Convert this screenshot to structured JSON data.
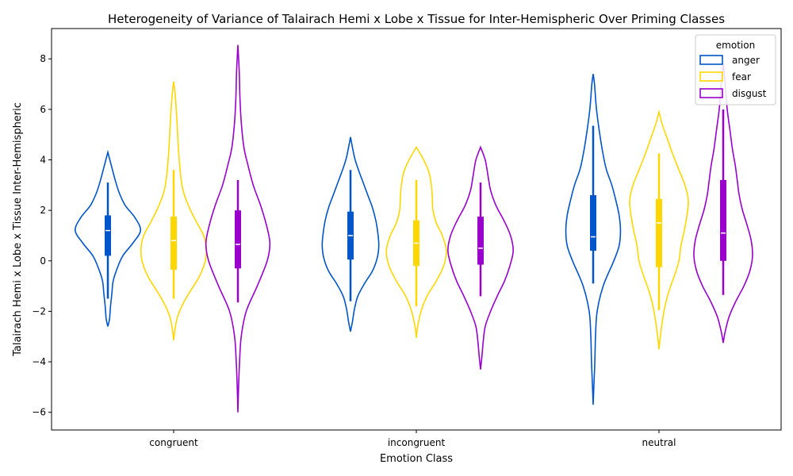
{
  "chart_data": {
    "type": "violin",
    "title": "Heterogeneity of Variance of Talairach Hemi x Lobe x Tissue for Inter-Hemispheric Over Priming Classes",
    "xlabel": "Emotion Class",
    "ylabel": "Talairach Hemi x Lobe x Tissue Inter-Hemispheric",
    "categories": [
      "congruent",
      "incongruent",
      "neutral"
    ],
    "ylim": [
      -6.7,
      9.2
    ],
    "yticks": [
      -6,
      -4,
      -2,
      0,
      2,
      4,
      6,
      8
    ],
    "legend": {
      "title": "emotion",
      "position": "top-right"
    },
    "series": [
      {
        "name": "anger",
        "color": "#0055c8",
        "stats": [
          {
            "min": -2.6,
            "max": 4.3,
            "whisker_low": -1.5,
            "whisker_high": 3.1,
            "q1": 0.2,
            "median": 1.2,
            "q3": 1.8,
            "density": [
              [
                -2.6,
                0.0
              ],
              [
                -2.3,
                0.05
              ],
              [
                -1.8,
                0.08
              ],
              [
                -1.3,
                0.12
              ],
              [
                -0.8,
                0.16
              ],
              [
                -0.3,
                0.28
              ],
              [
                0.2,
                0.45
              ],
              [
                0.7,
                0.75
              ],
              [
                1.2,
                0.98
              ],
              [
                1.7,
                0.82
              ],
              [
                2.2,
                0.52
              ],
              [
                2.7,
                0.34
              ],
              [
                3.2,
                0.22
              ],
              [
                3.7,
                0.12
              ],
              [
                4.3,
                0.0
              ]
            ]
          },
          {
            "min": -2.8,
            "max": 4.9,
            "whisker_low": -1.6,
            "whisker_high": 3.6,
            "q1": 0.05,
            "median": 1.0,
            "q3": 1.95,
            "density": [
              [
                -2.8,
                0.0
              ],
              [
                -2.4,
                0.06
              ],
              [
                -1.9,
                0.12
              ],
              [
                -1.4,
                0.22
              ],
              [
                -0.9,
                0.42
              ],
              [
                -0.4,
                0.66
              ],
              [
                0.1,
                0.8
              ],
              [
                0.6,
                0.85
              ],
              [
                1.1,
                0.82
              ],
              [
                1.6,
                0.76
              ],
              [
                2.1,
                0.66
              ],
              [
                2.6,
                0.52
              ],
              [
                3.1,
                0.38
              ],
              [
                3.6,
                0.24
              ],
              [
                4.1,
                0.12
              ],
              [
                4.9,
                0.0
              ]
            ]
          },
          {
            "min": -5.7,
            "max": 7.4,
            "whisker_low": -0.9,
            "whisker_high": 5.35,
            "q1": 0.4,
            "median": 0.95,
            "q3": 2.6,
            "density": [
              [
                -5.7,
                0.0
              ],
              [
                -5.0,
                0.02
              ],
              [
                -4.0,
                0.05
              ],
              [
                -3.0,
                0.07
              ],
              [
                -2.0,
                0.12
              ],
              [
                -1.0,
                0.3
              ],
              [
                0.0,
                0.62
              ],
              [
                0.6,
                0.78
              ],
              [
                1.2,
                0.82
              ],
              [
                1.8,
                0.78
              ],
              [
                2.4,
                0.68
              ],
              [
                3.0,
                0.56
              ],
              [
                3.6,
                0.4
              ],
              [
                4.2,
                0.3
              ],
              [
                5.0,
                0.2
              ],
              [
                6.0,
                0.1
              ],
              [
                7.0,
                0.04
              ],
              [
                7.4,
                0.0
              ]
            ]
          }
        ]
      },
      {
        "name": "fear",
        "color": "#ffd700",
        "stats": [
          {
            "min": -3.15,
            "max": 7.1,
            "whisker_low": -1.5,
            "whisker_high": 3.6,
            "q1": -0.35,
            "median": 0.8,
            "q3": 1.75,
            "density": [
              [
                -3.15,
                0.0
              ],
              [
                -2.7,
                0.04
              ],
              [
                -2.2,
                0.12
              ],
              [
                -1.7,
                0.28
              ],
              [
                -1.2,
                0.5
              ],
              [
                -0.6,
                0.78
              ],
              [
                0.0,
                0.95
              ],
              [
                0.5,
                0.98
              ],
              [
                1.0,
                0.9
              ],
              [
                1.6,
                0.66
              ],
              [
                2.2,
                0.44
              ],
              [
                2.8,
                0.28
              ],
              [
                3.5,
                0.2
              ],
              [
                4.5,
                0.14
              ],
              [
                5.5,
                0.1
              ],
              [
                6.5,
                0.05
              ],
              [
                7.1,
                0.0
              ]
            ]
          },
          {
            "min": -3.05,
            "max": 4.5,
            "whisker_low": -1.8,
            "whisker_high": 3.2,
            "q1": -0.2,
            "median": 0.7,
            "q3": 1.6,
            "density": [
              [
                -3.05,
                0.0
              ],
              [
                -2.6,
                0.04
              ],
              [
                -2.0,
                0.14
              ],
              [
                -1.4,
                0.32
              ],
              [
                -0.8,
                0.6
              ],
              [
                -0.2,
                0.82
              ],
              [
                0.4,
                0.9
              ],
              [
                1.0,
                0.78
              ],
              [
                1.5,
                0.6
              ],
              [
                2.0,
                0.5
              ],
              [
                2.5,
                0.48
              ],
              [
                3.0,
                0.45
              ],
              [
                3.5,
                0.38
              ],
              [
                4.0,
                0.22
              ],
              [
                4.5,
                0.0
              ]
            ]
          },
          {
            "min": -3.5,
            "max": 5.9,
            "whisker_low": -1.95,
            "whisker_high": 4.25,
            "q1": -0.25,
            "median": 1.5,
            "q3": 2.45,
            "density": [
              [
                -3.5,
                0.0
              ],
              [
                -3.0,
                0.04
              ],
              [
                -2.4,
                0.1
              ],
              [
                -1.8,
                0.18
              ],
              [
                -1.2,
                0.3
              ],
              [
                -0.6,
                0.46
              ],
              [
                0.0,
                0.6
              ],
              [
                0.6,
                0.66
              ],
              [
                1.2,
                0.76
              ],
              [
                1.8,
                0.84
              ],
              [
                2.4,
                0.88
              ],
              [
                3.0,
                0.78
              ],
              [
                3.6,
                0.6
              ],
              [
                4.2,
                0.42
              ],
              [
                4.8,
                0.26
              ],
              [
                5.4,
                0.1
              ],
              [
                5.9,
                0.0
              ]
            ]
          }
        ]
      },
      {
        "name": "disgust",
        "color": "#9900cc",
        "stats": [
          {
            "min": -6.0,
            "max": 8.55,
            "whisker_low": -1.65,
            "whisker_high": 3.2,
            "q1": -0.3,
            "median": 0.65,
            "q3": 2.0,
            "density": [
              [
                -6.0,
                0.0
              ],
              [
                -5.0,
                0.02
              ],
              [
                -4.0,
                0.05
              ],
              [
                -3.0,
                0.1
              ],
              [
                -2.0,
                0.25
              ],
              [
                -1.0,
                0.58
              ],
              [
                0.0,
                0.88
              ],
              [
                0.7,
                0.96
              ],
              [
                1.4,
                0.86
              ],
              [
                2.2,
                0.68
              ],
              [
                3.0,
                0.46
              ],
              [
                3.8,
                0.3
              ],
              [
                4.5,
                0.18
              ],
              [
                5.5,
                0.1
              ],
              [
                6.5,
                0.06
              ],
              [
                7.5,
                0.04
              ],
              [
                8.55,
                0.0
              ]
            ]
          },
          {
            "min": -4.3,
            "max": 4.5,
            "whisker_low": -1.4,
            "whisker_high": 3.1,
            "q1": -0.15,
            "median": 0.5,
            "q3": 1.75,
            "density": [
              [
                -4.3,
                0.0
              ],
              [
                -3.8,
                0.04
              ],
              [
                -3.2,
                0.08
              ],
              [
                -2.6,
                0.14
              ],
              [
                -2.0,
                0.3
              ],
              [
                -1.4,
                0.5
              ],
              [
                -0.8,
                0.72
              ],
              [
                -0.2,
                0.88
              ],
              [
                0.4,
                0.98
              ],
              [
                1.0,
                0.9
              ],
              [
                1.6,
                0.7
              ],
              [
                2.2,
                0.46
              ],
              [
                2.8,
                0.3
              ],
              [
                3.4,
                0.22
              ],
              [
                4.0,
                0.14
              ],
              [
                4.5,
                0.0
              ]
            ]
          },
          {
            "min": -3.25,
            "max": 7.85,
            "whisker_low": -1.35,
            "whisker_high": 6.0,
            "q1": 0.0,
            "median": 1.1,
            "q3": 3.2,
            "density": [
              [
                -3.25,
                0.0
              ],
              [
                -2.8,
                0.06
              ],
              [
                -2.2,
                0.18
              ],
              [
                -1.6,
                0.38
              ],
              [
                -1.0,
                0.62
              ],
              [
                -0.4,
                0.8
              ],
              [
                0.2,
                0.88
              ],
              [
                0.8,
                0.84
              ],
              [
                1.4,
                0.72
              ],
              [
                2.0,
                0.58
              ],
              [
                2.6,
                0.48
              ],
              [
                3.2,
                0.42
              ],
              [
                3.8,
                0.36
              ],
              [
                4.4,
                0.28
              ],
              [
                5.2,
                0.2
              ],
              [
                6.0,
                0.12
              ],
              [
                7.0,
                0.06
              ],
              [
                7.85,
                0.0
              ]
            ]
          }
        ]
      }
    ]
  }
}
